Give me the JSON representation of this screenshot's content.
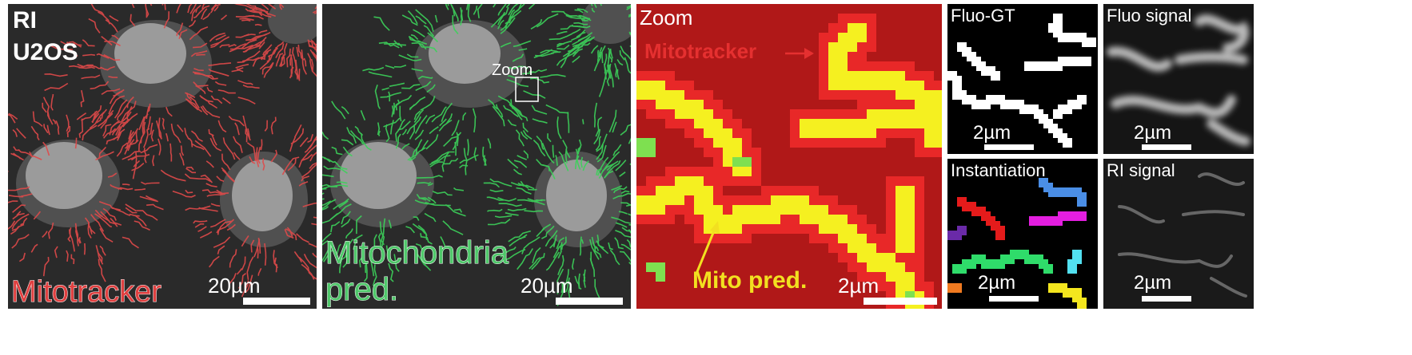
{
  "panels": {
    "ri_u2os": {
      "label_line1": "RI",
      "label_line2": "U2OS",
      "bottom_label": "Mitotracker",
      "bottom_label_color": "#e04040",
      "scale": "20µm"
    },
    "mito_pred": {
      "label_line1": "Mitochondria",
      "label_line2": "pred.",
      "label_color": "#4fc86a",
      "zoom_box_label": "Zoom",
      "scale": "20µm"
    },
    "zoom": {
      "title": "Zoom",
      "mitotracker_label": "Mitotracker",
      "mitotracker_color": "#e53030",
      "mito_pred_label": "Mito pred.",
      "mito_pred_color": "#f2e020",
      "scale": "2µm"
    },
    "fluo_gt": {
      "title": "Fluo-GT",
      "scale": "2µm"
    },
    "fluo_signal": {
      "title": "Fluo signal",
      "scale": "2µm"
    },
    "instantiation": {
      "title": "Instantiation",
      "scale": "2µm"
    },
    "ri_signal": {
      "title": "RI signal",
      "scale": "2µm"
    }
  },
  "colors": {
    "mitotracker_red": "#e04040",
    "mito_green": "#3cd25a",
    "zoom_red": "#e82020",
    "zoom_yellow": "#f5f020",
    "instance_red": "#e51b1b",
    "instance_blue": "#4a8ee6",
    "instance_magenta": "#e41ee0",
    "instance_purple": "#6a2aa8",
    "instance_green": "#2fdc6a",
    "instance_cyan": "#52e0f0",
    "instance_orange": "#f07a20",
    "instance_yellow": "#f4e61e"
  }
}
